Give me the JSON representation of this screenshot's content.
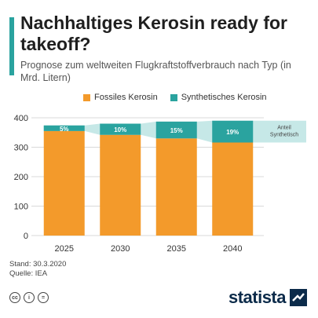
{
  "header": {
    "title": "Nachhaltiges Kerosin ready for takeoff?",
    "subtitle": "Prognose zum weltweiten Flugkraftstoffverbrauch nach Typ (in Mrd. Litern)"
  },
  "colors": {
    "accent": "#2aa39f",
    "fossil": "#f39a2b",
    "synthetic": "#2aa39f",
    "band": "#c6e8e7"
  },
  "chart_data": {
    "type": "bar",
    "stacked": true,
    "categories": [
      "2025",
      "2030",
      "2035",
      "2040"
    ],
    "series": [
      {
        "name": "Fossiles Kerosin",
        "values": [
          355,
          342,
          330,
          316
        ]
      },
      {
        "name": "Synthetisches Kerosin",
        "values": [
          19,
          38,
          57,
          74
        ]
      }
    ],
    "bar_labels": [
      "5%",
      "10%",
      "15%",
      "19%"
    ],
    "band_annotation": [
      "Anteil",
      "Synthetisch"
    ],
    "ylim": [
      0,
      400
    ],
    "yticks": [
      0,
      100,
      200,
      300,
      400
    ],
    "grid": true,
    "legend_position": "top"
  },
  "footer": {
    "date": "Stand: 30.3.2020",
    "source": "Quelle: IEA",
    "license_icons": [
      "cc",
      "i",
      "="
    ],
    "brand": "statista"
  }
}
